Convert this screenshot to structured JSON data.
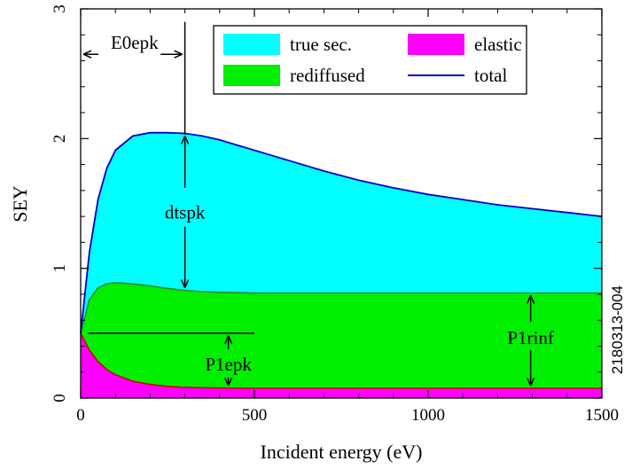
{
  "chart_data": {
    "type": "area",
    "xlabel": "Incident energy (eV)",
    "ylabel": "SEY",
    "xlim": [
      0,
      1500
    ],
    "ylim": [
      0,
      3
    ],
    "xticks": [
      0,
      500,
      1000,
      1500
    ],
    "yticks": [
      0,
      1,
      2,
      3
    ],
    "x": [
      0,
      25,
      50,
      75,
      100,
      150,
      200,
      250,
      300,
      350,
      400,
      500,
      600,
      700,
      800,
      900,
      1000,
      1100,
      1200,
      1300,
      1400,
      1500
    ],
    "series": [
      {
        "name": "elastic",
        "color": "#ff00ff",
        "values": [
          0.5,
          0.37,
          0.28,
          0.22,
          0.18,
          0.13,
          0.105,
          0.09,
          0.083,
          0.079,
          0.077,
          0.075,
          0.075,
          0.075,
          0.075,
          0.075,
          0.075,
          0.075,
          0.075,
          0.075,
          0.075,
          0.075
        ]
      },
      {
        "name": "rediffused",
        "color": "#00ee00",
        "values": [
          0.5,
          0.76,
          0.85,
          0.88,
          0.89,
          0.88,
          0.865,
          0.845,
          0.83,
          0.82,
          0.815,
          0.81,
          0.81,
          0.81,
          0.81,
          0.81,
          0.81,
          0.81,
          0.81,
          0.81,
          0.81,
          0.81
        ]
      },
      {
        "name": "true sec.",
        "color": "#00ffff",
        "values": [
          0.5,
          1.12,
          1.53,
          1.77,
          1.91,
          2.02,
          2.045,
          2.045,
          2.04,
          2.02,
          1.99,
          1.91,
          1.83,
          1.75,
          1.68,
          1.62,
          1.57,
          1.53,
          1.49,
          1.46,
          1.43,
          1.4
        ]
      },
      {
        "name": "total",
        "color": "#0000cc",
        "values": [
          0.5,
          1.12,
          1.53,
          1.77,
          1.91,
          2.02,
          2.045,
          2.045,
          2.04,
          2.02,
          1.99,
          1.91,
          1.83,
          1.75,
          1.68,
          1.62,
          1.57,
          1.53,
          1.49,
          1.46,
          1.43,
          1.4
        ]
      }
    ],
    "legend": {
      "placement": "top-right",
      "entries": [
        {
          "label": "true sec.",
          "color": "#00ffff",
          "kind": "box"
        },
        {
          "label": "elastic",
          "color": "#ff00ff",
          "kind": "box"
        },
        {
          "label": "rediffused",
          "color": "#00ee00",
          "kind": "box"
        },
        {
          "label": "total",
          "color": "#0000cc",
          "kind": "line"
        }
      ]
    },
    "annotations": {
      "e0epk": {
        "label": "E0epk",
        "x_from": 0,
        "x_to": 300,
        "y": 2.65
      },
      "dtspk": {
        "label": "dtspk",
        "x": 300,
        "y_top": 2.04,
        "y_bottom": 0.83,
        "y_label": 1.43
      },
      "p1epk": {
        "label": "P1epk",
        "x": 425,
        "y_top": 0.5,
        "y_bottom": 0.075,
        "y_label": 0.24,
        "ref_x_from": 20,
        "ref_x_to": 500
      },
      "p1rinf": {
        "label": "P1rinf",
        "x": 1295,
        "y_top": 0.81,
        "y_bottom": 0.075,
        "y_label": 0.45
      }
    },
    "side_label": "2180313-004",
    "grid": false
  }
}
